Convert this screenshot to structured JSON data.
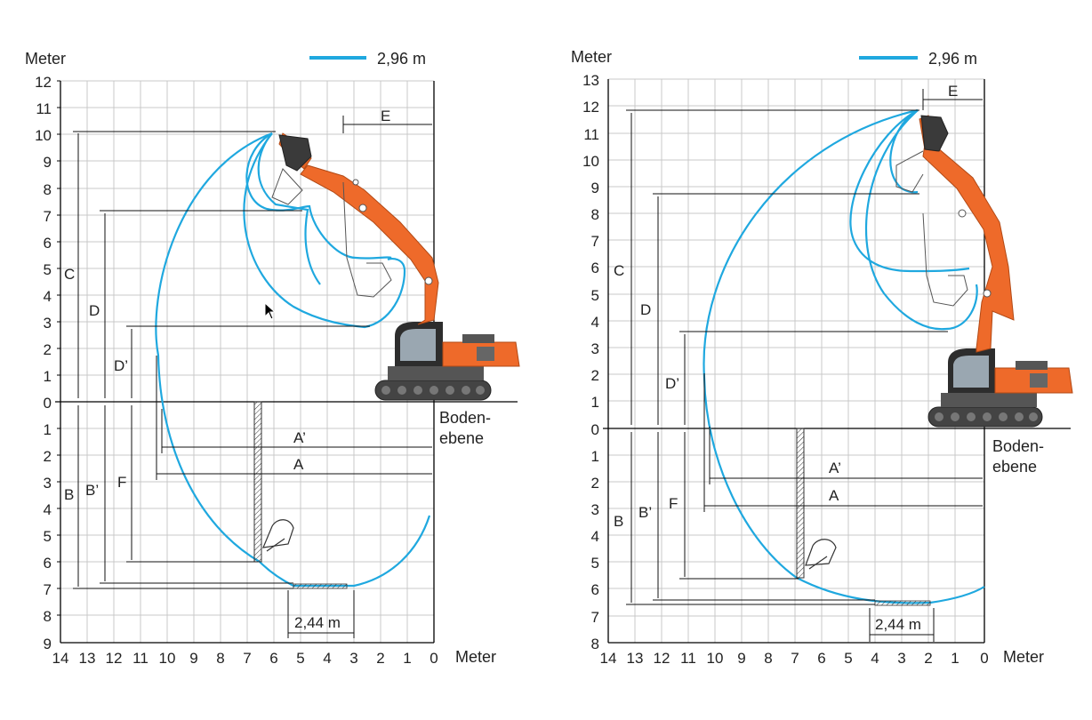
{
  "colors": {
    "reach": "#1fa8df",
    "machine": "#ee6a2a",
    "grid": "#c8c8c8",
    "axis": "#000000"
  },
  "left": {
    "unit_label": "Meter",
    "x_unit_label": "Meter",
    "legend_label": "2,96 m",
    "ground_label_1": "Boden-",
    "ground_label_2": "ebene",
    "bucket_width_label": "2,44 m",
    "dims": {
      "A": "A",
      "A2": "A’",
      "B": "B",
      "B2": "B’",
      "C": "C",
      "D": "D",
      "D2": "D’",
      "E": "E",
      "F": "F"
    },
    "x_ticks": [
      "14",
      "13",
      "12",
      "11",
      "10",
      "9",
      "8",
      "7",
      "6",
      "5",
      "4",
      "3",
      "2",
      "1",
      "0"
    ],
    "y_ticks_up": [
      "0",
      "1",
      "2",
      "3",
      "4",
      "5",
      "6",
      "7",
      "8",
      "9",
      "10",
      "11",
      "12"
    ],
    "y_ticks_down": [
      "1",
      "2",
      "3",
      "4",
      "5",
      "6",
      "7",
      "8",
      "9"
    ]
  },
  "right": {
    "unit_label": "Meter",
    "x_unit_label": "Meter",
    "legend_label": "2,96 m",
    "ground_label_1": "Boden-",
    "ground_label_2": "ebene",
    "bucket_width_label": "2,44 m",
    "dims": {
      "A": "A",
      "A2": "A’",
      "B": "B",
      "B2": "B’",
      "C": "C",
      "D": "D",
      "D2": "D’",
      "E": "E",
      "F": "F"
    },
    "x_ticks": [
      "14",
      "13",
      "12",
      "11",
      "10",
      "9",
      "8",
      "7",
      "6",
      "5",
      "4",
      "3",
      "2",
      "1",
      "0"
    ],
    "y_ticks_up": [
      "0",
      "1",
      "2",
      "3",
      "4",
      "5",
      "6",
      "7",
      "8",
      "9",
      "10",
      "11",
      "12",
      "13"
    ],
    "y_ticks_down": [
      "1",
      "2",
      "3",
      "4",
      "5",
      "6",
      "7",
      "8"
    ]
  }
}
